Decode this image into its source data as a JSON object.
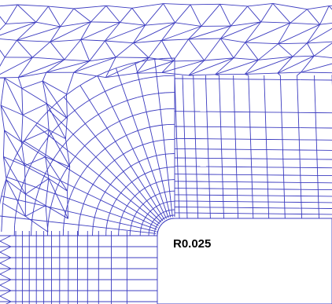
{
  "figure": {
    "fillet_label": "R0.025",
    "mesh_line_color": "#3c3cc0",
    "background_color": "#ffffff"
  }
}
